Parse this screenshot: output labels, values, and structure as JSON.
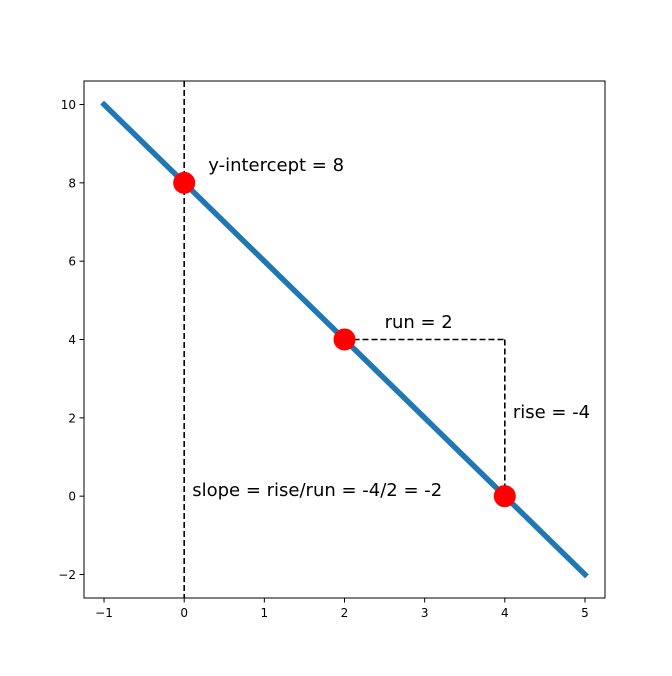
{
  "chart_data": {
    "type": "line",
    "title": "",
    "xlabel": "",
    "ylabel": "",
    "xlim": [
      -1.25,
      5.25
    ],
    "ylim": [
      -2.6,
      10.6
    ],
    "grid": false,
    "legend": "none",
    "x_ticks": [
      -1,
      0,
      1,
      2,
      3,
      4,
      5
    ],
    "x_tick_labels": [
      "−1",
      "0",
      "1",
      "2",
      "3",
      "4",
      "5"
    ],
    "y_ticks": [
      -2,
      0,
      2,
      4,
      6,
      8,
      10
    ],
    "y_tick_labels": [
      "−2",
      "0",
      "2",
      "4",
      "6",
      "8",
      "10"
    ],
    "series": [
      {
        "type": "line",
        "x": [
          -1,
          5
        ],
        "y": [
          10,
          -2
        ],
        "color": "#1f77b4"
      }
    ],
    "points": {
      "x": [
        0,
        2,
        4
      ],
      "y": [
        8,
        4,
        0
      ],
      "color": "#ff0000"
    },
    "guides": {
      "vertical_x": 0,
      "run": {
        "x": [
          2,
          4
        ],
        "y": 4
      },
      "rise": {
        "x": 4,
        "y": [
          0,
          4
        ]
      }
    },
    "annotations": [
      {
        "id": "y-intercept",
        "text": "y-intercept = 8",
        "x": 0.3,
        "y": 8.3
      },
      {
        "id": "run",
        "text": "run = 2",
        "x": 2.5,
        "y": 4.3
      },
      {
        "id": "rise",
        "text": "rise = -4",
        "x": 4.1,
        "y": 2.0
      },
      {
        "id": "slope",
        "text": "slope = rise/run = -4/2 = -2",
        "x": 0.1,
        "y": 0.0
      }
    ]
  }
}
